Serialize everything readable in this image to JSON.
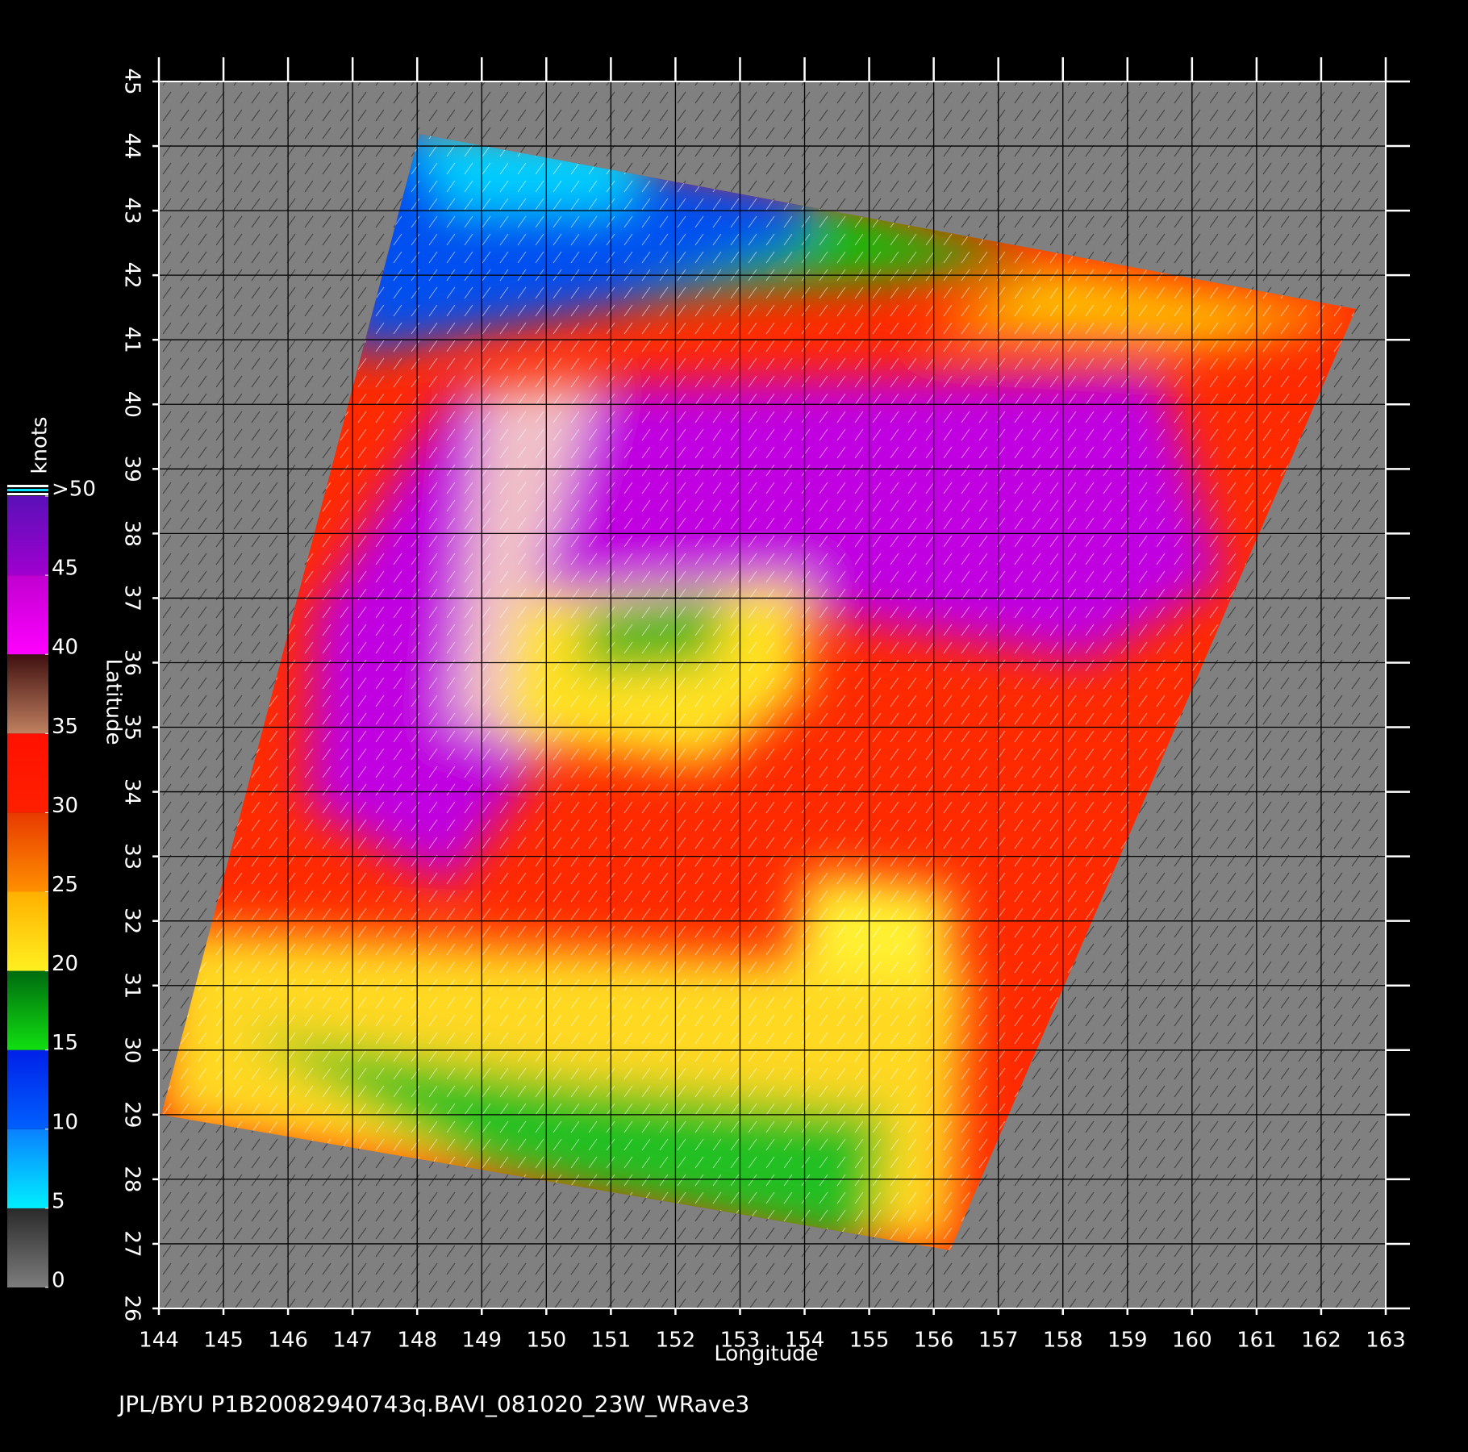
{
  "chart_data": {
    "type": "map",
    "xlabel": "Longitude",
    "ylabel": "Latitude",
    "xlim": [
      144,
      163
    ],
    "ylim": [
      26,
      45
    ],
    "xticks": [
      144,
      145,
      146,
      147,
      148,
      149,
      150,
      151,
      152,
      153,
      154,
      155,
      156,
      157,
      158,
      159,
      160,
      161,
      162,
      163
    ],
    "yticks": [
      26,
      27,
      28,
      29,
      30,
      31,
      32,
      33,
      34,
      35,
      36,
      37,
      38,
      39,
      40,
      41,
      42,
      43,
      44,
      45
    ],
    "grid": true,
    "footer": "JPL/BYU  P1B20082940743q.BAVI_081020_23W_WRave3",
    "colorscale": {
      "title": "knots",
      "ticks": [
        0,
        5,
        10,
        15,
        20,
        25,
        30,
        35,
        40,
        45,
        {
          "value": 50,
          "label": ">50"
        }
      ],
      "colors": [
        [
          "#7d7d7d",
          "#2a2a2a"
        ],
        [
          "#00f0ff",
          "#0a80ff"
        ],
        [
          "#0060ff",
          "#0020e8"
        ],
        [
          "#10e010",
          "#006a10"
        ],
        [
          "#fff020",
          "#ffb000"
        ],
        [
          "#ff9000",
          "#e83a00"
        ],
        [
          "#ff2000",
          "#ff1000"
        ],
        [
          "#c08060",
          "#401010"
        ],
        [
          "#ff00ff",
          "#c000d0"
        ],
        [
          "#a000d0",
          "#5a10b8"
        ]
      ]
    }
  }
}
